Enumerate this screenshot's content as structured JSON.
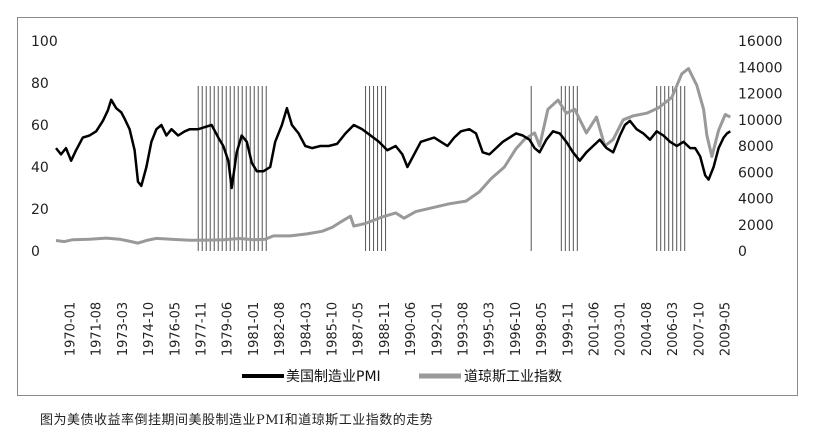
{
  "caption": "图为美债收益率倒挂期间美股制造业PMI和道琼斯工业指数的走势",
  "chart_data": {
    "type": "line",
    "x_tick_labels": [
      "1970-01",
      "1971-08",
      "1973-03",
      "1974-10",
      "1976-05",
      "1977-11",
      "1979-06",
      "1981-01",
      "1982-08",
      "1984-03",
      "1985-10",
      "1987-05",
      "1988-11",
      "1990-06",
      "1992-01",
      "1993-08",
      "1995-03",
      "1996-10",
      "1998-05",
      "1999-11",
      "2001-06",
      "2003-01",
      "2004-08",
      "2006-03",
      "2007-10",
      "2009-05"
    ],
    "y_left": {
      "ticks": [
        0,
        20,
        40,
        60,
        80,
        100
      ],
      "range": [
        0,
        100
      ]
    },
    "y_right": {
      "ticks": [
        0,
        2000,
        4000,
        6000,
        8000,
        10000,
        12000,
        14000,
        16000
      ],
      "range": [
        0,
        16000
      ]
    },
    "legend": {
      "placement": "bottom-center"
    },
    "series": [
      {
        "name": "美国制造业PMI",
        "axis": "left",
        "color": "#000000",
        "points": [
          [
            1970.0,
            49
          ],
          [
            1970.3,
            46
          ],
          [
            1970.6,
            49
          ],
          [
            1970.9,
            43
          ],
          [
            1971.2,
            48
          ],
          [
            1971.6,
            54
          ],
          [
            1972.0,
            55
          ],
          [
            1972.4,
            57
          ],
          [
            1972.8,
            62
          ],
          [
            1973.1,
            67
          ],
          [
            1973.3,
            72
          ],
          [
            1973.6,
            68
          ],
          [
            1973.9,
            66
          ],
          [
            1974.1,
            63
          ],
          [
            1974.4,
            58
          ],
          [
            1974.7,
            48
          ],
          [
            1974.9,
            33
          ],
          [
            1975.1,
            31
          ],
          [
            1975.4,
            40
          ],
          [
            1975.7,
            52
          ],
          [
            1976.0,
            58
          ],
          [
            1976.3,
            60
          ],
          [
            1976.6,
            55
          ],
          [
            1976.9,
            58
          ],
          [
            1977.3,
            55
          ],
          [
            1977.7,
            57
          ],
          [
            1978.0,
            58
          ],
          [
            1978.5,
            58
          ],
          [
            1978.9,
            59
          ],
          [
            1979.3,
            60
          ],
          [
            1979.7,
            54
          ],
          [
            1980.0,
            50
          ],
          [
            1980.3,
            43
          ],
          [
            1980.5,
            30
          ],
          [
            1980.8,
            47
          ],
          [
            1981.1,
            55
          ],
          [
            1981.4,
            52
          ],
          [
            1981.7,
            42
          ],
          [
            1982.0,
            38
          ],
          [
            1982.4,
            38
          ],
          [
            1982.8,
            40
          ],
          [
            1983.1,
            52
          ],
          [
            1983.5,
            60
          ],
          [
            1983.8,
            68
          ],
          [
            1984.1,
            60
          ],
          [
            1984.5,
            56
          ],
          [
            1984.9,
            50
          ],
          [
            1985.3,
            49
          ],
          [
            1985.8,
            50
          ],
          [
            1986.3,
            50
          ],
          [
            1986.8,
            51
          ],
          [
            1987.3,
            56
          ],
          [
            1987.8,
            60
          ],
          [
            1988.3,
            58
          ],
          [
            1988.8,
            55
          ],
          [
            1989.3,
            52
          ],
          [
            1989.8,
            48
          ],
          [
            1990.3,
            50
          ],
          [
            1990.7,
            46
          ],
          [
            1991.0,
            40
          ],
          [
            1991.4,
            46
          ],
          [
            1991.8,
            52
          ],
          [
            1992.2,
            53
          ],
          [
            1992.6,
            54
          ],
          [
            1993.0,
            52
          ],
          [
            1993.4,
            50
          ],
          [
            1993.8,
            54
          ],
          [
            1994.2,
            57
          ],
          [
            1994.7,
            58
          ],
          [
            1995.1,
            56
          ],
          [
            1995.5,
            47
          ],
          [
            1995.9,
            46
          ],
          [
            1996.3,
            49
          ],
          [
            1996.7,
            52
          ],
          [
            1997.1,
            54
          ],
          [
            1997.5,
            56
          ],
          [
            1997.9,
            55
          ],
          [
            1998.3,
            53
          ],
          [
            1998.6,
            49
          ],
          [
            1998.9,
            47
          ],
          [
            1999.3,
            53
          ],
          [
            1999.7,
            57
          ],
          [
            2000.1,
            56
          ],
          [
            2000.5,
            52
          ],
          [
            2000.9,
            47
          ],
          [
            2001.3,
            43
          ],
          [
            2001.7,
            47
          ],
          [
            2002.1,
            50
          ],
          [
            2002.5,
            53
          ],
          [
            2002.9,
            49
          ],
          [
            2003.3,
            47
          ],
          [
            2003.7,
            55
          ],
          [
            2004.0,
            60
          ],
          [
            2004.3,
            62
          ],
          [
            2004.7,
            58
          ],
          [
            2005.1,
            56
          ],
          [
            2005.5,
            53
          ],
          [
            2005.9,
            57
          ],
          [
            2006.3,
            55
          ],
          [
            2006.7,
            52
          ],
          [
            2007.1,
            50
          ],
          [
            2007.5,
            52
          ],
          [
            2007.9,
            49
          ],
          [
            2008.2,
            49
          ],
          [
            2008.5,
            45
          ],
          [
            2008.8,
            36
          ],
          [
            2009.0,
            34
          ],
          [
            2009.3,
            40
          ],
          [
            2009.6,
            49
          ],
          [
            2009.9,
            54
          ],
          [
            2010.1,
            56
          ],
          [
            2010.3,
            57
          ]
        ]
      },
      {
        "name": "道琼斯工业指数",
        "axis": "right",
        "color": "#999999",
        "points": [
          [
            1970.0,
            800
          ],
          [
            1970.5,
            720
          ],
          [
            1971.0,
            860
          ],
          [
            1972.0,
            900
          ],
          [
            1973.0,
            980
          ],
          [
            1973.8,
            900
          ],
          [
            1974.5,
            720
          ],
          [
            1974.9,
            600
          ],
          [
            1975.5,
            830
          ],
          [
            1976.0,
            960
          ],
          [
            1977.0,
            880
          ],
          [
            1978.0,
            820
          ],
          [
            1979.0,
            830
          ],
          [
            1980.0,
            860
          ],
          [
            1981.0,
            950
          ],
          [
            1981.8,
            850
          ],
          [
            1982.5,
            900
          ],
          [
            1983.0,
            1150
          ],
          [
            1984.0,
            1150
          ],
          [
            1985.0,
            1300
          ],
          [
            1985.9,
            1500
          ],
          [
            1986.5,
            1800
          ],
          [
            1987.0,
            2200
          ],
          [
            1987.6,
            2650
          ],
          [
            1987.8,
            1900
          ],
          [
            1988.5,
            2100
          ],
          [
            1989.5,
            2600
          ],
          [
            1990.3,
            2900
          ],
          [
            1990.8,
            2500
          ],
          [
            1991.5,
            3000
          ],
          [
            1992.5,
            3300
          ],
          [
            1993.5,
            3600
          ],
          [
            1994.5,
            3800
          ],
          [
            1995.3,
            4500
          ],
          [
            1996.0,
            5500
          ],
          [
            1996.8,
            6400
          ],
          [
            1997.5,
            7800
          ],
          [
            1998.0,
            8500
          ],
          [
            1998.6,
            9000
          ],
          [
            1998.9,
            8000
          ],
          [
            1999.4,
            10800
          ],
          [
            2000.0,
            11500
          ],
          [
            2000.5,
            10500
          ],
          [
            2001.0,
            10800
          ],
          [
            2001.7,
            9000
          ],
          [
            2002.3,
            10200
          ],
          [
            2002.8,
            8000
          ],
          [
            2003.3,
            8500
          ],
          [
            2003.9,
            10000
          ],
          [
            2004.5,
            10300
          ],
          [
            2005.3,
            10500
          ],
          [
            2006.0,
            10900
          ],
          [
            2006.8,
            11700
          ],
          [
            2007.4,
            13500
          ],
          [
            2007.8,
            13900
          ],
          [
            2008.3,
            12600
          ],
          [
            2008.7,
            10800
          ],
          [
            2008.9,
            8800
          ],
          [
            2009.2,
            7200
          ],
          [
            2009.6,
            9200
          ],
          [
            2010.0,
            10400
          ],
          [
            2010.3,
            10200
          ]
        ]
      }
    ],
    "shaded_periods": [
      [
        1978.5,
        1982.6
      ],
      [
        1988.5,
        1989.8
      ],
      [
        1998.4,
        1998.5
      ],
      [
        2000.2,
        2001.2
      ],
      [
        2005.9,
        2007.7
      ]
    ]
  }
}
